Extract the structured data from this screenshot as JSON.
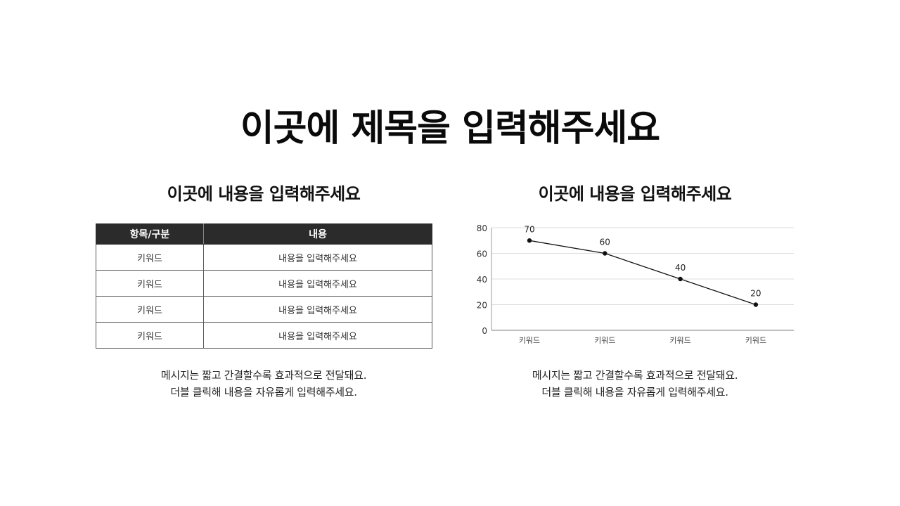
{
  "title": "이곳에 제목을 입력해주세요",
  "left": {
    "subtitle": "이곳에 내용을 입력해주세요",
    "table": {
      "headers": [
        "항목/구분",
        "내용"
      ],
      "rows": [
        [
          "키워드",
          "내용을 입력해주세요"
        ],
        [
          "키워드",
          "내용을 입력해주세요"
        ],
        [
          "키워드",
          "내용을 입력해주세요"
        ],
        [
          "키워드",
          "내용을 입력해주세요"
        ]
      ]
    },
    "caption": [
      "메시지는 짧고 간결할수록 효과적으로 전달돼요.",
      "더블 클릭해 내용을 자유롭게 입력해주세요."
    ]
  },
  "right": {
    "subtitle": "이곳에 내용을 입력해주세요",
    "caption": [
      "메시지는 짧고 간결할수록 효과적으로 전달돼요.",
      "더블 클릭해 내용을 자유롭게 입력해주세요."
    ]
  },
  "colors": {
    "header_bg": "#2b2b2b",
    "line": "#111111",
    "grid": "#dddddd",
    "axis": "#999999"
  },
  "chart_data": {
    "type": "line",
    "title": "",
    "xlabel": "",
    "ylabel": "",
    "categories": [
      "키워드",
      "키워드",
      "키워드",
      "키워드"
    ],
    "series": [
      {
        "name": "",
        "values": [
          70,
          60,
          40,
          20
        ]
      }
    ],
    "data_labels": [
      "70",
      "60",
      "40",
      "20"
    ],
    "yticks": [
      0,
      20,
      40,
      60,
      80
    ],
    "ylim": [
      0,
      80
    ],
    "grid": true,
    "legend": "none"
  }
}
